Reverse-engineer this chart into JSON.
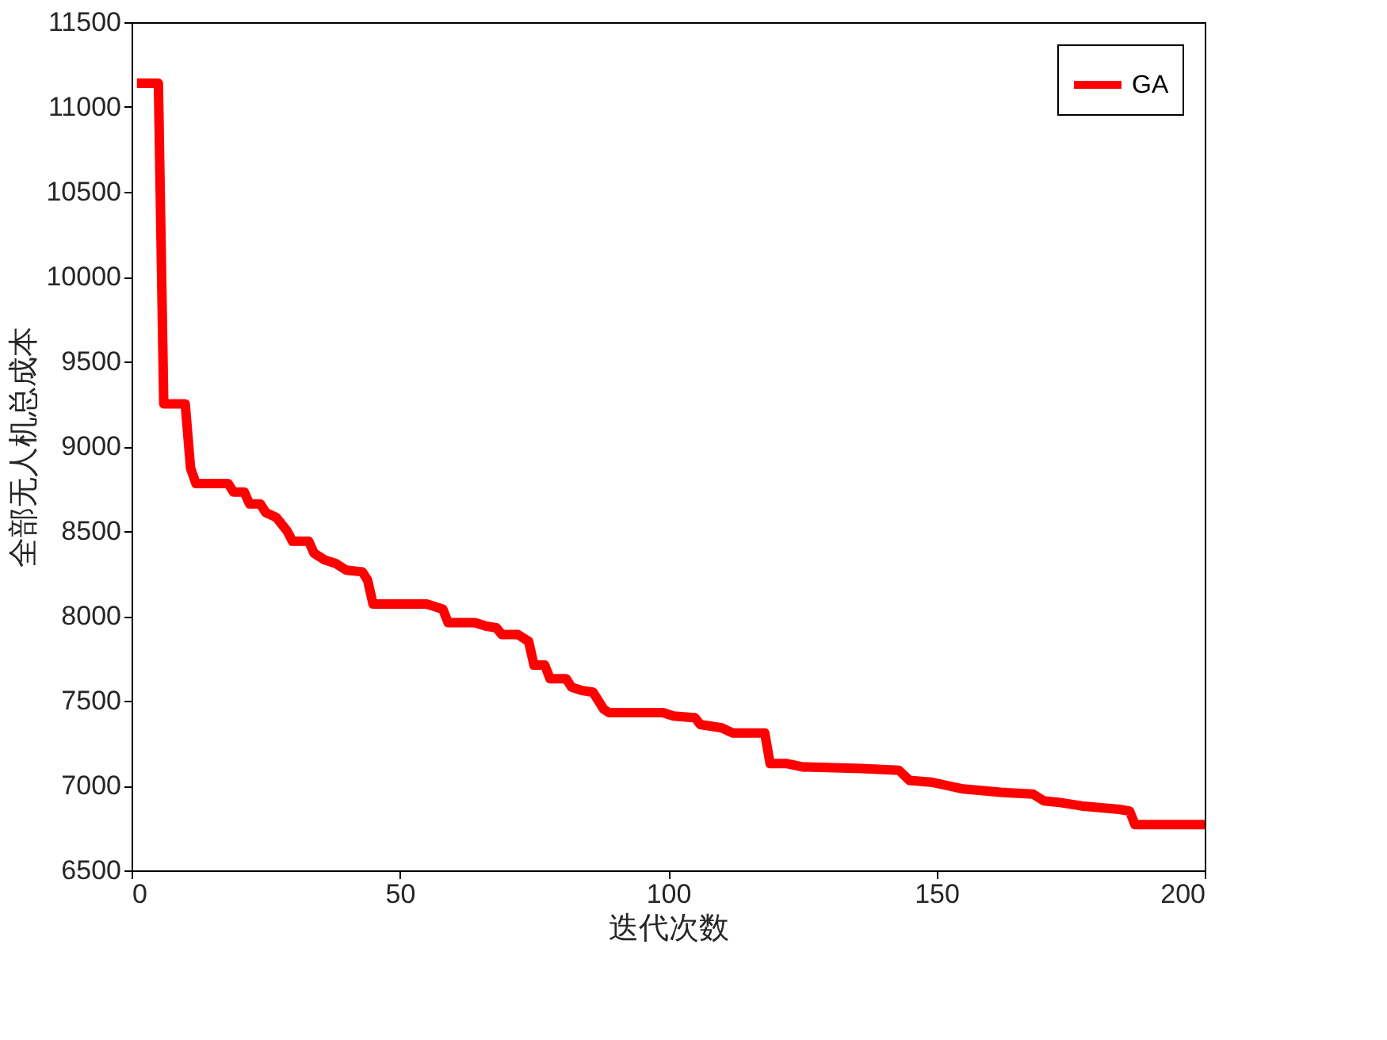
{
  "chart_data": {
    "type": "line",
    "xlabel": "迭代次数",
    "ylabel": "全部无人机总成本",
    "xlim": [
      0,
      200
    ],
    "xticks": [
      0,
      50,
      100,
      150,
      200
    ],
    "ylim": [
      6500,
      11500
    ],
    "yticks": [
      6500,
      7000,
      7500,
      8000,
      8500,
      9000,
      9500,
      10000,
      10500,
      11000,
      11500
    ],
    "grid": false,
    "legend": "top right",
    "line_style": "solid",
    "marker": "none",
    "series": [
      {
        "name": "GA",
        "color": "#ff0000",
        "x": [
          1,
          5,
          6,
          10,
          11,
          12,
          18,
          19,
          21,
          22,
          24,
          25,
          27,
          29,
          30,
          33,
          34,
          36,
          38,
          40,
          43,
          44,
          45,
          55,
          57,
          58,
          59,
          64,
          66,
          68,
          69,
          72,
          74,
          75,
          77,
          78,
          81,
          82,
          84,
          86,
          88,
          89,
          99,
          101,
          105,
          106,
          110,
          112,
          118,
          119,
          122,
          125,
          136,
          143,
          145,
          149,
          152,
          155,
          162,
          168,
          170,
          173,
          177,
          184,
          186,
          187,
          200
        ],
        "values": [
          11140,
          11140,
          9250,
          9250,
          8870,
          8780,
          8780,
          8730,
          8730,
          8660,
          8660,
          8610,
          8580,
          8500,
          8440,
          8440,
          8370,
          8330,
          8310,
          8270,
          8260,
          8210,
          8070,
          8070,
          8050,
          8040,
          7960,
          7960,
          7940,
          7930,
          7890,
          7890,
          7850,
          7710,
          7710,
          7630,
          7630,
          7580,
          7560,
          7550,
          7450,
          7430,
          7430,
          7410,
          7400,
          7360,
          7340,
          7310,
          7310,
          7130,
          7130,
          7110,
          7100,
          7090,
          7030,
          7020,
          7000,
          6980,
          6960,
          6950,
          6910,
          6900,
          6880,
          6860,
          6850,
          6770,
          6770
        ]
      }
    ]
  }
}
